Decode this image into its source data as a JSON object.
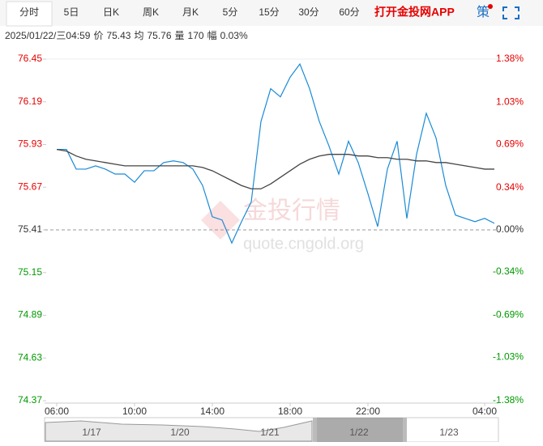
{
  "tabs": [
    "分时",
    "5日",
    "日K",
    "周K",
    "月K",
    "5分",
    "15分",
    "30分",
    "60分"
  ],
  "app_link": "打开金投网APP",
  "strategy": "策",
  "info": {
    "datetime": "2025/01/22/三04:59",
    "price_label": "价",
    "price": 75.43,
    "avg_label": "均",
    "avg": 75.76,
    "vol_label": "量",
    "vol": 170,
    "amp_label": "幅",
    "amp": "0.03%"
  },
  "watermark": {
    "title": "金投行情",
    "url": "quote.cngold.org"
  },
  "navigator": {
    "labels": [
      "1/17",
      "1/20",
      "1/21",
      "1/22",
      "1/23"
    ]
  },
  "chart_data": {
    "type": "line",
    "x": [
      "06:00",
      "06:30",
      "07:00",
      "07:30",
      "08:00",
      "08:30",
      "09:00",
      "09:30",
      "10:00",
      "10:30",
      "11:00",
      "11:30",
      "12:00",
      "12:30",
      "13:00",
      "13:30",
      "14:00",
      "14:30",
      "15:00",
      "15:30",
      "16:00",
      "16:30",
      "17:00",
      "17:30",
      "18:00",
      "18:30",
      "19:00",
      "19:30",
      "20:00",
      "20:30",
      "21:00",
      "21:30",
      "22:00",
      "22:30",
      "23:00",
      "23:30",
      "00:00",
      "00:30",
      "01:00",
      "01:30",
      "02:00",
      "02:30",
      "03:00",
      "03:30",
      "04:00",
      "04:30"
    ],
    "series": [
      {
        "color": "#1a8ad6",
        "values": [
          75.9,
          75.9,
          75.78,
          75.78,
          75.8,
          75.78,
          75.75,
          75.75,
          75.7,
          75.77,
          75.77,
          75.82,
          75.83,
          75.82,
          75.78,
          75.68,
          75.49,
          75.47,
          75.33,
          75.46,
          75.58,
          76.07,
          76.27,
          76.22,
          76.34,
          76.42,
          76.27,
          76.07,
          75.92,
          75.75,
          75.95,
          75.82,
          75.63,
          75.43,
          75.78,
          75.95,
          75.48,
          75.87,
          76.12,
          75.97,
          75.68,
          75.5,
          75.48,
          75.46,
          75.48,
          75.45
        ]
      },
      {
        "color": "#444444",
        "values": [
          75.9,
          75.89,
          75.86,
          75.84,
          75.83,
          75.82,
          75.81,
          75.8,
          75.8,
          75.8,
          75.8,
          75.8,
          75.8,
          75.8,
          75.8,
          75.79,
          75.77,
          75.74,
          75.71,
          75.68,
          75.66,
          75.66,
          75.69,
          75.73,
          75.77,
          75.81,
          75.84,
          75.86,
          75.87,
          75.87,
          75.87,
          75.86,
          75.86,
          75.85,
          75.85,
          75.84,
          75.84,
          75.83,
          75.83,
          75.82,
          75.82,
          75.81,
          75.8,
          75.79,
          75.78,
          75.78
        ]
      }
    ],
    "base": 75.41,
    "up_color": "#e60000",
    "down_color": "#009900",
    "ylim": [
      74.37,
      76.45
    ],
    "yticks": [
      76.45,
      76.19,
      75.93,
      75.67,
      75.41,
      75.15,
      74.89,
      74.63,
      74.37
    ],
    "y2lim": [
      -1.38,
      1.38
    ],
    "y2ticks": [
      {
        "value": 1.38,
        "label": "1.38%"
      },
      {
        "value": 1.03,
        "label": "1.03%"
      },
      {
        "value": 0.69,
        "label": "0.69%"
      },
      {
        "value": 0.34,
        "label": "0.34%"
      },
      {
        "value": 0,
        "label": "0.00%"
      },
      {
        "value": -0.34,
        "label": "-0.34%"
      },
      {
        "value": -0.69,
        "label": "-0.69%"
      },
      {
        "value": -1.03,
        "label": "-1.03%"
      },
      {
        "value": -1.38,
        "label": "-1.38%"
      }
    ],
    "xticks": [
      "06:00",
      "10:00",
      "14:00",
      "18:00",
      "22:00",
      "04:00"
    ]
  }
}
